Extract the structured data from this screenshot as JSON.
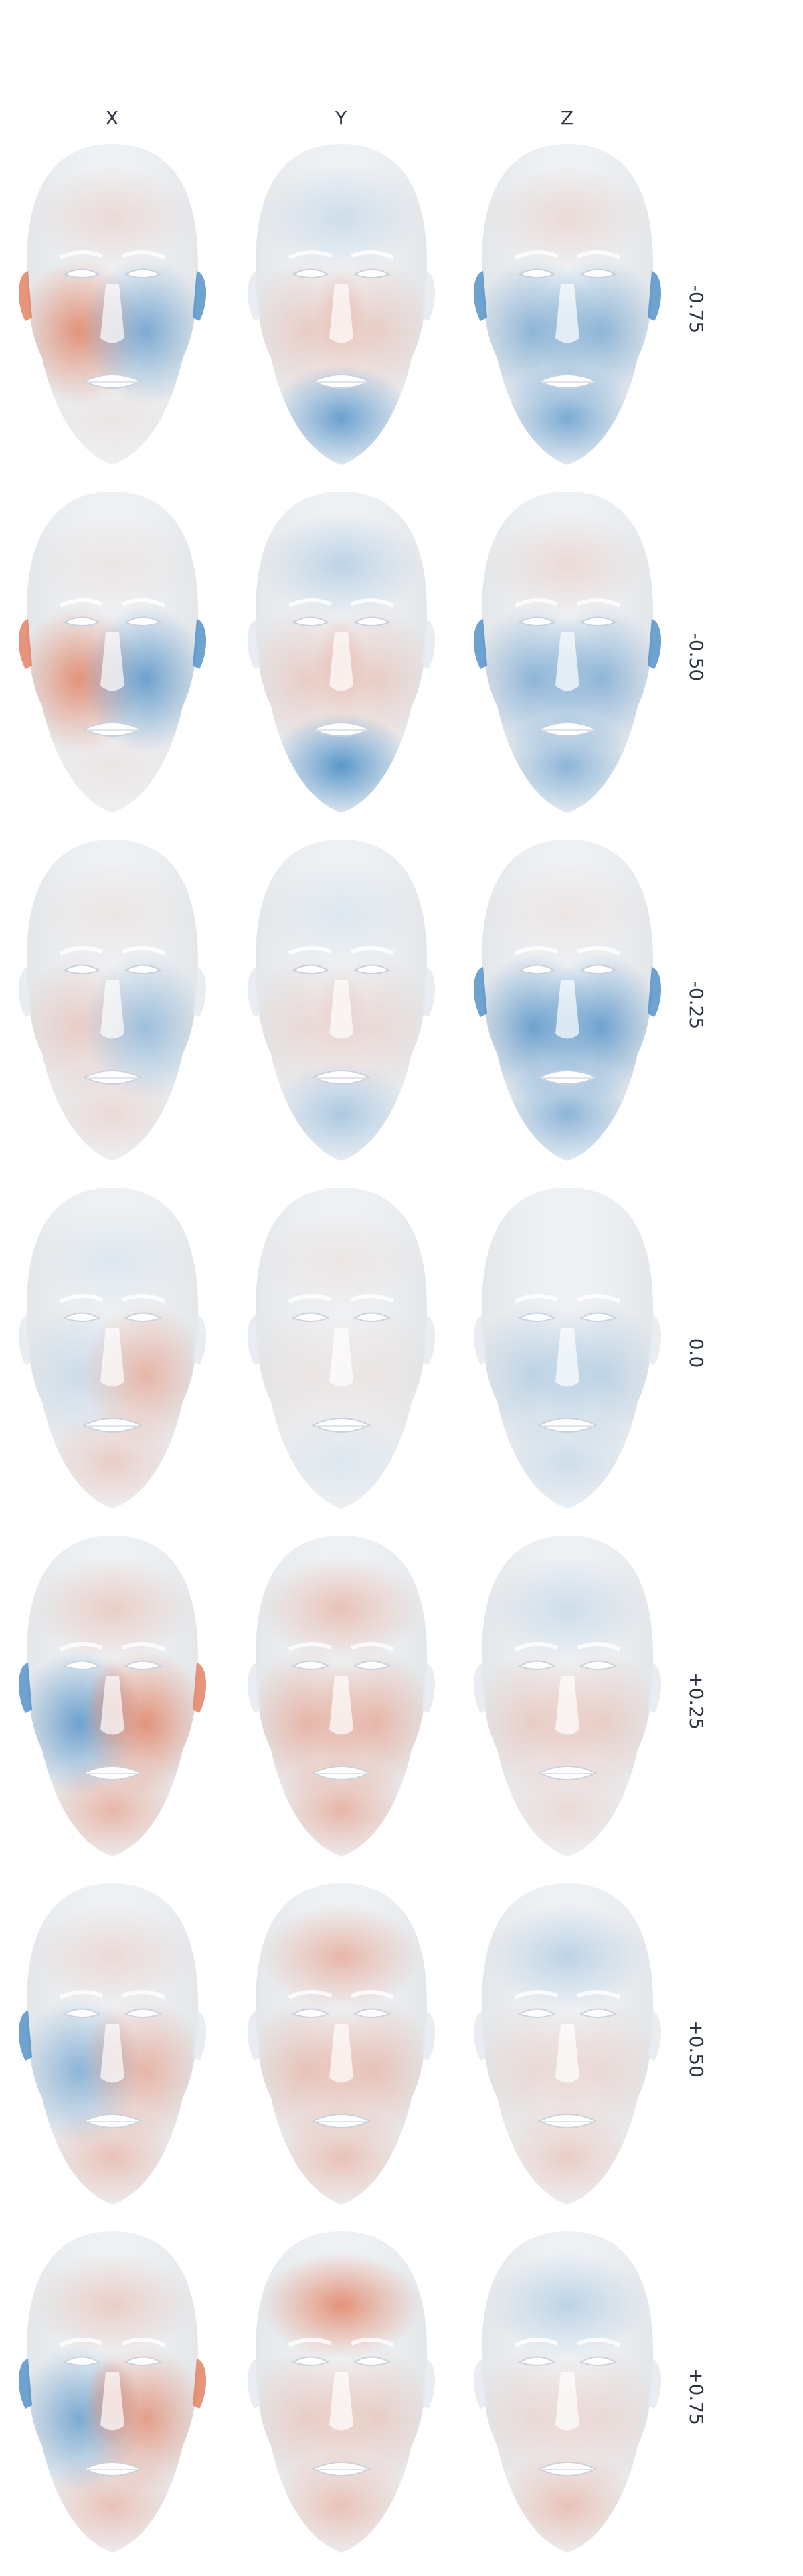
{
  "columns": [
    {
      "label": "X"
    },
    {
      "label": "Y"
    },
    {
      "label": "Z"
    }
  ],
  "rows": [
    {
      "label": "-0.75"
    },
    {
      "label": "-0.50"
    },
    {
      "label": "-0.25"
    },
    {
      "label": "0.0"
    },
    {
      "label": "+0.25"
    },
    {
      "label": "+0.50"
    },
    {
      "label": "+0.75"
    }
  ],
  "colors": {
    "positive": "#e07a5a",
    "negative": "#4a8cc4",
    "neutral": "#eef1f4",
    "text": "#2b3440"
  }
}
